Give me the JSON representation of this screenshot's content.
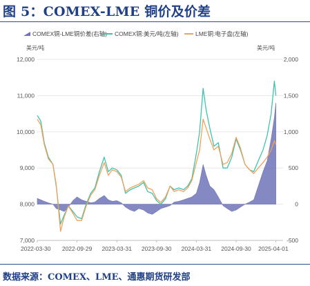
{
  "header": {
    "title": "图 5：COMEX-LME 铜价及价差"
  },
  "footer": {
    "source": "数据来源：COMEX、LME、通惠期货研发部"
  },
  "chart_data": {
    "type": "line",
    "title": "",
    "left_axis_unit": "美元/吨",
    "right_axis_unit": "美元/吨",
    "left_ylim": [
      7000,
      12000
    ],
    "left_ticks": [
      "7,000",
      "8,000",
      "9,000",
      "10,000",
      "11,000",
      "12,000"
    ],
    "right_ylim": [
      -500,
      2000
    ],
    "right_ticks": [
      "-500",
      "0",
      "500",
      "1,000",
      "1,500",
      "2,000"
    ],
    "x_tick_labels": [
      "2022-03-30",
      "2022-09-29",
      "2023-03-31",
      "2023-09-30",
      "2024-03-31",
      "2024-09-30",
      "2025-04-01"
    ],
    "xlim": [
      "2022-03-30",
      "2025-04-15"
    ],
    "grid": "horizontal",
    "legend_position": "top",
    "series": [
      {
        "name": "COMEX铜-LME铜价差(右轴)",
        "axis": "right",
        "style": "area",
        "color": "#6f74b8",
        "x": [
          "2022-03-30",
          "2022-04-15",
          "2022-05-01",
          "2022-05-20",
          "2022-06-10",
          "2022-06-25",
          "2022-07-15",
          "2022-08-01",
          "2022-08-20",
          "2022-09-10",
          "2022-09-29",
          "2022-10-20",
          "2022-11-10",
          "2022-12-01",
          "2022-12-20",
          "2023-01-10",
          "2023-02-01",
          "2023-02-20",
          "2023-03-10",
          "2023-03-31",
          "2023-04-20",
          "2023-05-10",
          "2023-06-01",
          "2023-06-20",
          "2023-07-10",
          "2023-08-01",
          "2023-08-20",
          "2023-09-10",
          "2023-09-30",
          "2023-10-20",
          "2023-11-10",
          "2023-12-01",
          "2023-12-20",
          "2024-01-10",
          "2024-02-01",
          "2024-02-20",
          "2024-03-10",
          "2024-03-31",
          "2024-04-15",
          "2024-05-01",
          "2024-05-15",
          "2024-06-01",
          "2024-06-20",
          "2024-07-10",
          "2024-08-01",
          "2024-08-20",
          "2024-09-10",
          "2024-09-30",
          "2024-10-20",
          "2024-11-10",
          "2024-12-01",
          "2024-12-20",
          "2025-01-10",
          "2025-02-01",
          "2025-02-20",
          "2025-03-10",
          "2025-03-25",
          "2025-04-01"
        ],
        "values": [
          80,
          60,
          40,
          20,
          0,
          -60,
          -80,
          -100,
          -40,
          50,
          100,
          60,
          40,
          20,
          30,
          80,
          120,
          60,
          40,
          50,
          20,
          -40,
          -80,
          -100,
          -60,
          -80,
          -120,
          -140,
          -100,
          -60,
          -40,
          -20,
          30,
          40,
          60,
          80,
          100,
          150,
          300,
          550,
          400,
          250,
          200,
          100,
          -20,
          -60,
          -100,
          -80,
          -40,
          0,
          30,
          60,
          250,
          450,
          600,
          900,
          1200,
          1400
        ]
      },
      {
        "name": "COMEX铜:美元/吨(左轴)",
        "axis": "left",
        "style": "line",
        "color": "#3cc3ad",
        "x": [
          "2022-03-30",
          "2022-04-15",
          "2022-05-01",
          "2022-05-20",
          "2022-06-10",
          "2022-06-25",
          "2022-07-15",
          "2022-08-01",
          "2022-08-20",
          "2022-09-10",
          "2022-09-29",
          "2022-10-20",
          "2022-11-10",
          "2022-12-01",
          "2022-12-20",
          "2023-01-10",
          "2023-02-01",
          "2023-02-20",
          "2023-03-10",
          "2023-03-31",
          "2023-04-20",
          "2023-05-10",
          "2023-06-01",
          "2023-06-20",
          "2023-07-10",
          "2023-08-01",
          "2023-08-20",
          "2023-09-10",
          "2023-09-30",
          "2023-10-20",
          "2023-11-10",
          "2023-12-01",
          "2023-12-20",
          "2024-01-10",
          "2024-02-01",
          "2024-02-20",
          "2024-03-10",
          "2024-03-31",
          "2024-04-15",
          "2024-05-01",
          "2024-05-15",
          "2024-06-01",
          "2024-06-20",
          "2024-07-10",
          "2024-08-01",
          "2024-08-20",
          "2024-09-10",
          "2024-09-30",
          "2024-10-20",
          "2024-11-10",
          "2024-12-01",
          "2024-12-20",
          "2025-01-10",
          "2025-02-01",
          "2025-02-20",
          "2025-03-10",
          "2025-03-25",
          "2025-04-01"
        ],
        "values": [
          10450,
          10300,
          9700,
          9300,
          9100,
          8500,
          7450,
          7700,
          7950,
          7800,
          7650,
          7600,
          8000,
          8300,
          8450,
          8900,
          9300,
          8900,
          9000,
          8950,
          8800,
          8300,
          8400,
          8450,
          8500,
          8600,
          8350,
          8300,
          8100,
          8000,
          8150,
          8500,
          8400,
          8450,
          8400,
          8500,
          8700,
          9400,
          10000,
          11200,
          10600,
          10100,
          9600,
          9700,
          9000,
          9000,
          9300,
          9800,
          9500,
          9100,
          8950,
          8900,
          9200,
          9500,
          9900,
          10500,
          11400,
          11000
        ]
      },
      {
        "name": "LME铜:电子盘(左轴)",
        "axis": "left",
        "style": "line",
        "color": "#f3a05a",
        "x": [
          "2022-03-30",
          "2022-04-15",
          "2022-05-01",
          "2022-05-20",
          "2022-06-10",
          "2022-06-25",
          "2022-07-15",
          "2022-08-01",
          "2022-08-20",
          "2022-09-10",
          "2022-09-29",
          "2022-10-20",
          "2022-11-10",
          "2022-12-01",
          "2022-12-20",
          "2023-01-10",
          "2023-02-01",
          "2023-02-20",
          "2023-03-10",
          "2023-03-31",
          "2023-04-20",
          "2023-05-10",
          "2023-06-01",
          "2023-06-20",
          "2023-07-10",
          "2023-08-01",
          "2023-08-20",
          "2023-09-10",
          "2023-09-30",
          "2023-10-20",
          "2023-11-10",
          "2023-12-01",
          "2023-12-20",
          "2024-01-10",
          "2024-02-01",
          "2024-02-20",
          "2024-03-10",
          "2024-03-31",
          "2024-04-15",
          "2024-05-01",
          "2024-05-15",
          "2024-06-01",
          "2024-06-20",
          "2024-07-10",
          "2024-08-01",
          "2024-08-20",
          "2024-09-10",
          "2024-09-30",
          "2024-10-20",
          "2024-11-10",
          "2024-12-01",
          "2024-12-20",
          "2025-01-10",
          "2025-02-01",
          "2025-02-20",
          "2025-03-10",
          "2025-03-25",
          "2025-04-01"
        ],
        "values": [
          10350,
          10200,
          9650,
          9250,
          9100,
          8550,
          7250,
          7650,
          7950,
          7750,
          7550,
          7550,
          7950,
          8250,
          8400,
          8800,
          9150,
          8800,
          8950,
          8900,
          8750,
          8350,
          8450,
          8500,
          8550,
          8650,
          8450,
          8400,
          8150,
          8050,
          8200,
          8500,
          8350,
          8400,
          8350,
          8450,
          8650,
          9150,
          9500,
          10350,
          10100,
          9800,
          9500,
          9600,
          9100,
          9150,
          9400,
          9850,
          9550,
          9100,
          8950,
          8850,
          9000,
          9150,
          9300,
          9500,
          9750,
          9650
        ]
      }
    ]
  }
}
